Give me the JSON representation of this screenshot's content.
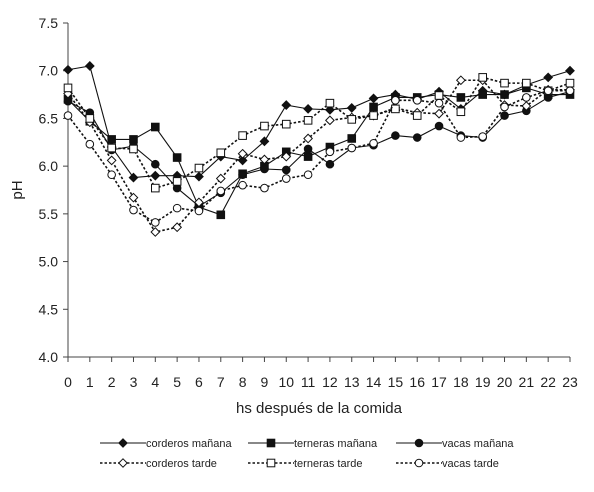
{
  "chart_data": {
    "type": "line",
    "title": "",
    "xlabel": "hs después de la comida",
    "ylabel": "pH",
    "x": [
      0,
      1,
      2,
      3,
      4,
      5,
      6,
      7,
      8,
      9,
      10,
      11,
      12,
      13,
      14,
      15,
      16,
      17,
      18,
      19,
      20,
      21,
      22,
      23
    ],
    "xticks": [
      "0",
      "1",
      "2",
      "3",
      "4",
      "5",
      "6",
      "7",
      "8",
      "9",
      "10",
      "11",
      "12",
      "13",
      "14",
      "15",
      "16",
      "17",
      "18",
      "19",
      "20",
      "21",
      "22",
      "23"
    ],
    "ylim": [
      4.0,
      7.5
    ],
    "yticks": [
      "4.0",
      "4.5",
      "5.0",
      "5.5",
      "6.0",
      "6.5",
      "7.0",
      "7.5"
    ],
    "ytick_values": [
      4.0,
      4.5,
      5.0,
      5.5,
      6.0,
      6.5,
      7.0,
      7.5
    ],
    "grid": false,
    "legend_position": "bottom",
    "series": [
      {
        "name": "corderos mañana",
        "marker": "diamond",
        "filled": true,
        "dashed": false,
        "values": [
          7.01,
          7.05,
          6.2,
          5.88,
          5.9,
          5.9,
          5.89,
          6.1,
          6.06,
          6.26,
          6.64,
          6.6,
          6.59,
          6.61,
          6.71,
          6.75,
          6.7,
          6.78,
          6.6,
          6.79,
          6.75,
          6.85,
          6.93,
          7.0
        ]
      },
      {
        "name": "terneras mañana",
        "marker": "square",
        "filled": true,
        "dashed": false,
        "values": [
          6.7,
          6.47,
          6.28,
          6.28,
          6.41,
          6.09,
          5.57,
          5.49,
          5.92,
          6.0,
          6.15,
          6.1,
          6.2,
          6.29,
          6.62,
          6.72,
          6.72,
          6.75,
          6.72,
          6.75,
          6.75,
          6.82,
          6.75,
          6.75
        ]
      },
      {
        "name": "vacas mañana",
        "marker": "circle",
        "filled": true,
        "dashed": false,
        "values": [
          6.68,
          6.56,
          6.17,
          6.21,
          6.02,
          5.77,
          5.58,
          5.72,
          5.91,
          5.97,
          5.96,
          6.18,
          6.02,
          6.19,
          6.22,
          6.32,
          6.3,
          6.42,
          6.32,
          6.3,
          6.53,
          6.58,
          6.72,
          6.78
        ]
      },
      {
        "name": "corderos tarde",
        "marker": "diamond",
        "filled": false,
        "dashed": true,
        "values": [
          6.76,
          6.46,
          6.06,
          5.67,
          5.31,
          5.36,
          5.62,
          5.87,
          6.13,
          6.07,
          6.1,
          6.29,
          6.48,
          6.51,
          6.53,
          6.61,
          6.56,
          6.55,
          6.9,
          6.9,
          6.64,
          6.63,
          6.8,
          6.8
        ]
      },
      {
        "name": "terneras tarde",
        "marker": "square",
        "filled": false,
        "dashed": true,
        "values": [
          6.82,
          6.5,
          6.19,
          6.18,
          5.77,
          5.84,
          5.98,
          6.14,
          6.32,
          6.42,
          6.44,
          6.48,
          6.66,
          6.49,
          6.53,
          6.6,
          6.53,
          6.74,
          6.57,
          6.93,
          6.87,
          6.87,
          6.79,
          6.87
        ]
      },
      {
        "name": "vacas tarde",
        "marker": "circle",
        "filled": false,
        "dashed": true,
        "values": [
          6.53,
          6.23,
          5.91,
          5.54,
          5.41,
          5.56,
          5.53,
          5.74,
          5.8,
          5.77,
          5.87,
          5.91,
          6.15,
          6.19,
          6.24,
          6.69,
          6.69,
          6.66,
          6.3,
          6.31,
          6.62,
          6.72,
          6.79,
          6.79
        ]
      }
    ]
  }
}
